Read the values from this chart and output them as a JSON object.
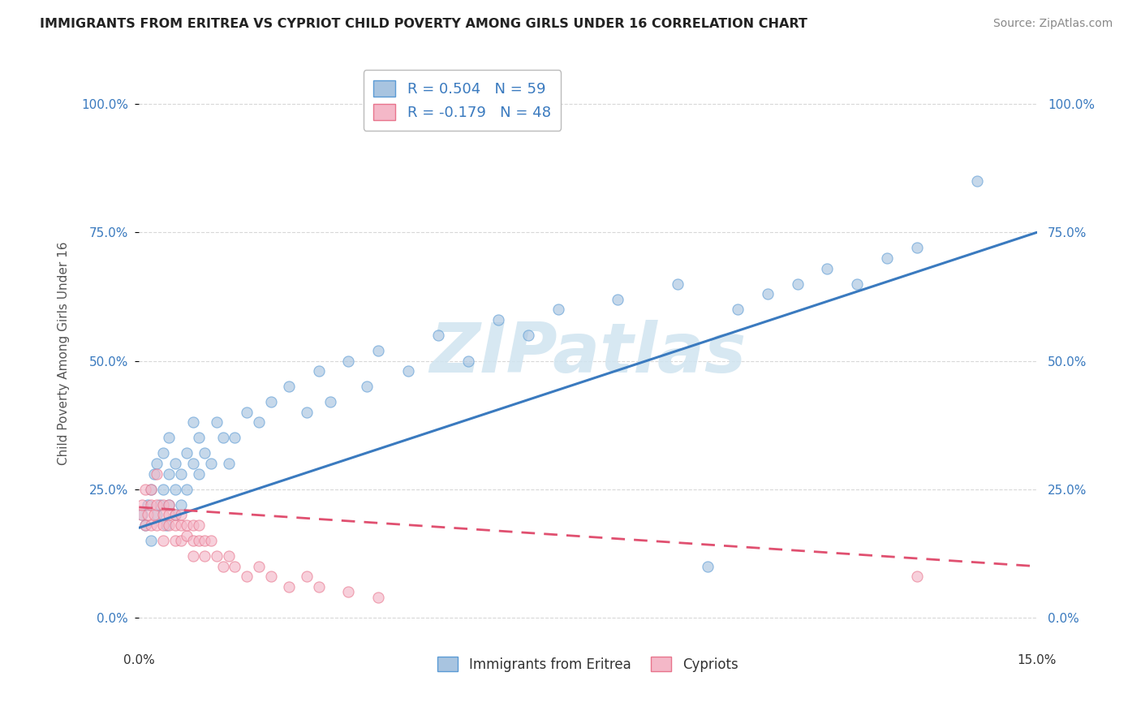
{
  "title": "IMMIGRANTS FROM ERITREA VS CYPRIOT CHILD POVERTY AMONG GIRLS UNDER 16 CORRELATION CHART",
  "source": "Source: ZipAtlas.com",
  "ylabel": "Child Poverty Among Girls Under 16",
  "xlim": [
    0.0,
    0.15
  ],
  "ylim": [
    -0.05,
    1.08
  ],
  "yticks": [
    0.0,
    0.25,
    0.5,
    0.75,
    1.0
  ],
  "ytick_labels": [
    "0.0%",
    "25.0%",
    "50.0%",
    "75.0%",
    "100.0%"
  ],
  "xtick_left": "0.0%",
  "xtick_right": "15.0%",
  "legend1_label": "R = 0.504   N = 59",
  "legend2_label": "R = -0.179   N = 48",
  "color_eritrea_fill": "#a8c4e0",
  "color_eritrea_edge": "#5b9bd5",
  "color_cypriot_fill": "#f4b8c8",
  "color_cypriot_edge": "#e8748c",
  "color_line_eritrea": "#3a7abf",
  "color_line_cypriot": "#e05070",
  "color_legend_text": "#3a7abf",
  "watermark_text": "ZIPatlas",
  "watermark_color": "#d0e4f0",
  "background_color": "#ffffff",
  "grid_color": "#d8d8d8",
  "scatter_alpha": 0.65,
  "scatter_size": 90,
  "eritrea_x": [
    0.0005,
    0.001,
    0.0015,
    0.002,
    0.002,
    0.0025,
    0.003,
    0.003,
    0.0035,
    0.004,
    0.004,
    0.0045,
    0.005,
    0.005,
    0.005,
    0.006,
    0.006,
    0.006,
    0.007,
    0.007,
    0.008,
    0.008,
    0.009,
    0.009,
    0.01,
    0.01,
    0.011,
    0.012,
    0.013,
    0.014,
    0.015,
    0.016,
    0.018,
    0.02,
    0.022,
    0.025,
    0.028,
    0.03,
    0.032,
    0.035,
    0.038,
    0.04,
    0.045,
    0.05,
    0.055,
    0.06,
    0.065,
    0.07,
    0.08,
    0.09,
    0.095,
    0.1,
    0.105,
    0.11,
    0.115,
    0.12,
    0.125,
    0.13,
    0.14
  ],
  "eritrea_y": [
    0.2,
    0.18,
    0.22,
    0.15,
    0.25,
    0.28,
    0.2,
    0.3,
    0.22,
    0.25,
    0.32,
    0.18,
    0.22,
    0.28,
    0.35,
    0.2,
    0.25,
    0.3,
    0.22,
    0.28,
    0.25,
    0.32,
    0.3,
    0.38,
    0.28,
    0.35,
    0.32,
    0.3,
    0.38,
    0.35,
    0.3,
    0.35,
    0.4,
    0.38,
    0.42,
    0.45,
    0.4,
    0.48,
    0.42,
    0.5,
    0.45,
    0.52,
    0.48,
    0.55,
    0.5,
    0.58,
    0.55,
    0.6,
    0.62,
    0.65,
    0.1,
    0.6,
    0.63,
    0.65,
    0.68,
    0.65,
    0.7,
    0.72,
    0.85
  ],
  "cypriot_x": [
    0.0003,
    0.0005,
    0.001,
    0.001,
    0.0015,
    0.002,
    0.002,
    0.002,
    0.0025,
    0.003,
    0.003,
    0.003,
    0.004,
    0.004,
    0.004,
    0.004,
    0.005,
    0.005,
    0.005,
    0.006,
    0.006,
    0.006,
    0.007,
    0.007,
    0.007,
    0.008,
    0.008,
    0.009,
    0.009,
    0.009,
    0.01,
    0.01,
    0.011,
    0.011,
    0.012,
    0.013,
    0.014,
    0.015,
    0.016,
    0.018,
    0.02,
    0.022,
    0.025,
    0.028,
    0.03,
    0.035,
    0.04,
    0.13
  ],
  "cypriot_y": [
    0.2,
    0.22,
    0.18,
    0.25,
    0.2,
    0.22,
    0.18,
    0.25,
    0.2,
    0.18,
    0.22,
    0.28,
    0.2,
    0.18,
    0.22,
    0.15,
    0.2,
    0.18,
    0.22,
    0.18,
    0.15,
    0.2,
    0.18,
    0.15,
    0.2,
    0.16,
    0.18,
    0.15,
    0.18,
    0.12,
    0.15,
    0.18,
    0.15,
    0.12,
    0.15,
    0.12,
    0.1,
    0.12,
    0.1,
    0.08,
    0.1,
    0.08,
    0.06,
    0.08,
    0.06,
    0.05,
    0.04,
    0.08
  ],
  "line_eritrea_y0": 0.175,
  "line_eritrea_y1": 0.75,
  "line_cypriot_y0": 0.215,
  "line_cypriot_y1": 0.1
}
